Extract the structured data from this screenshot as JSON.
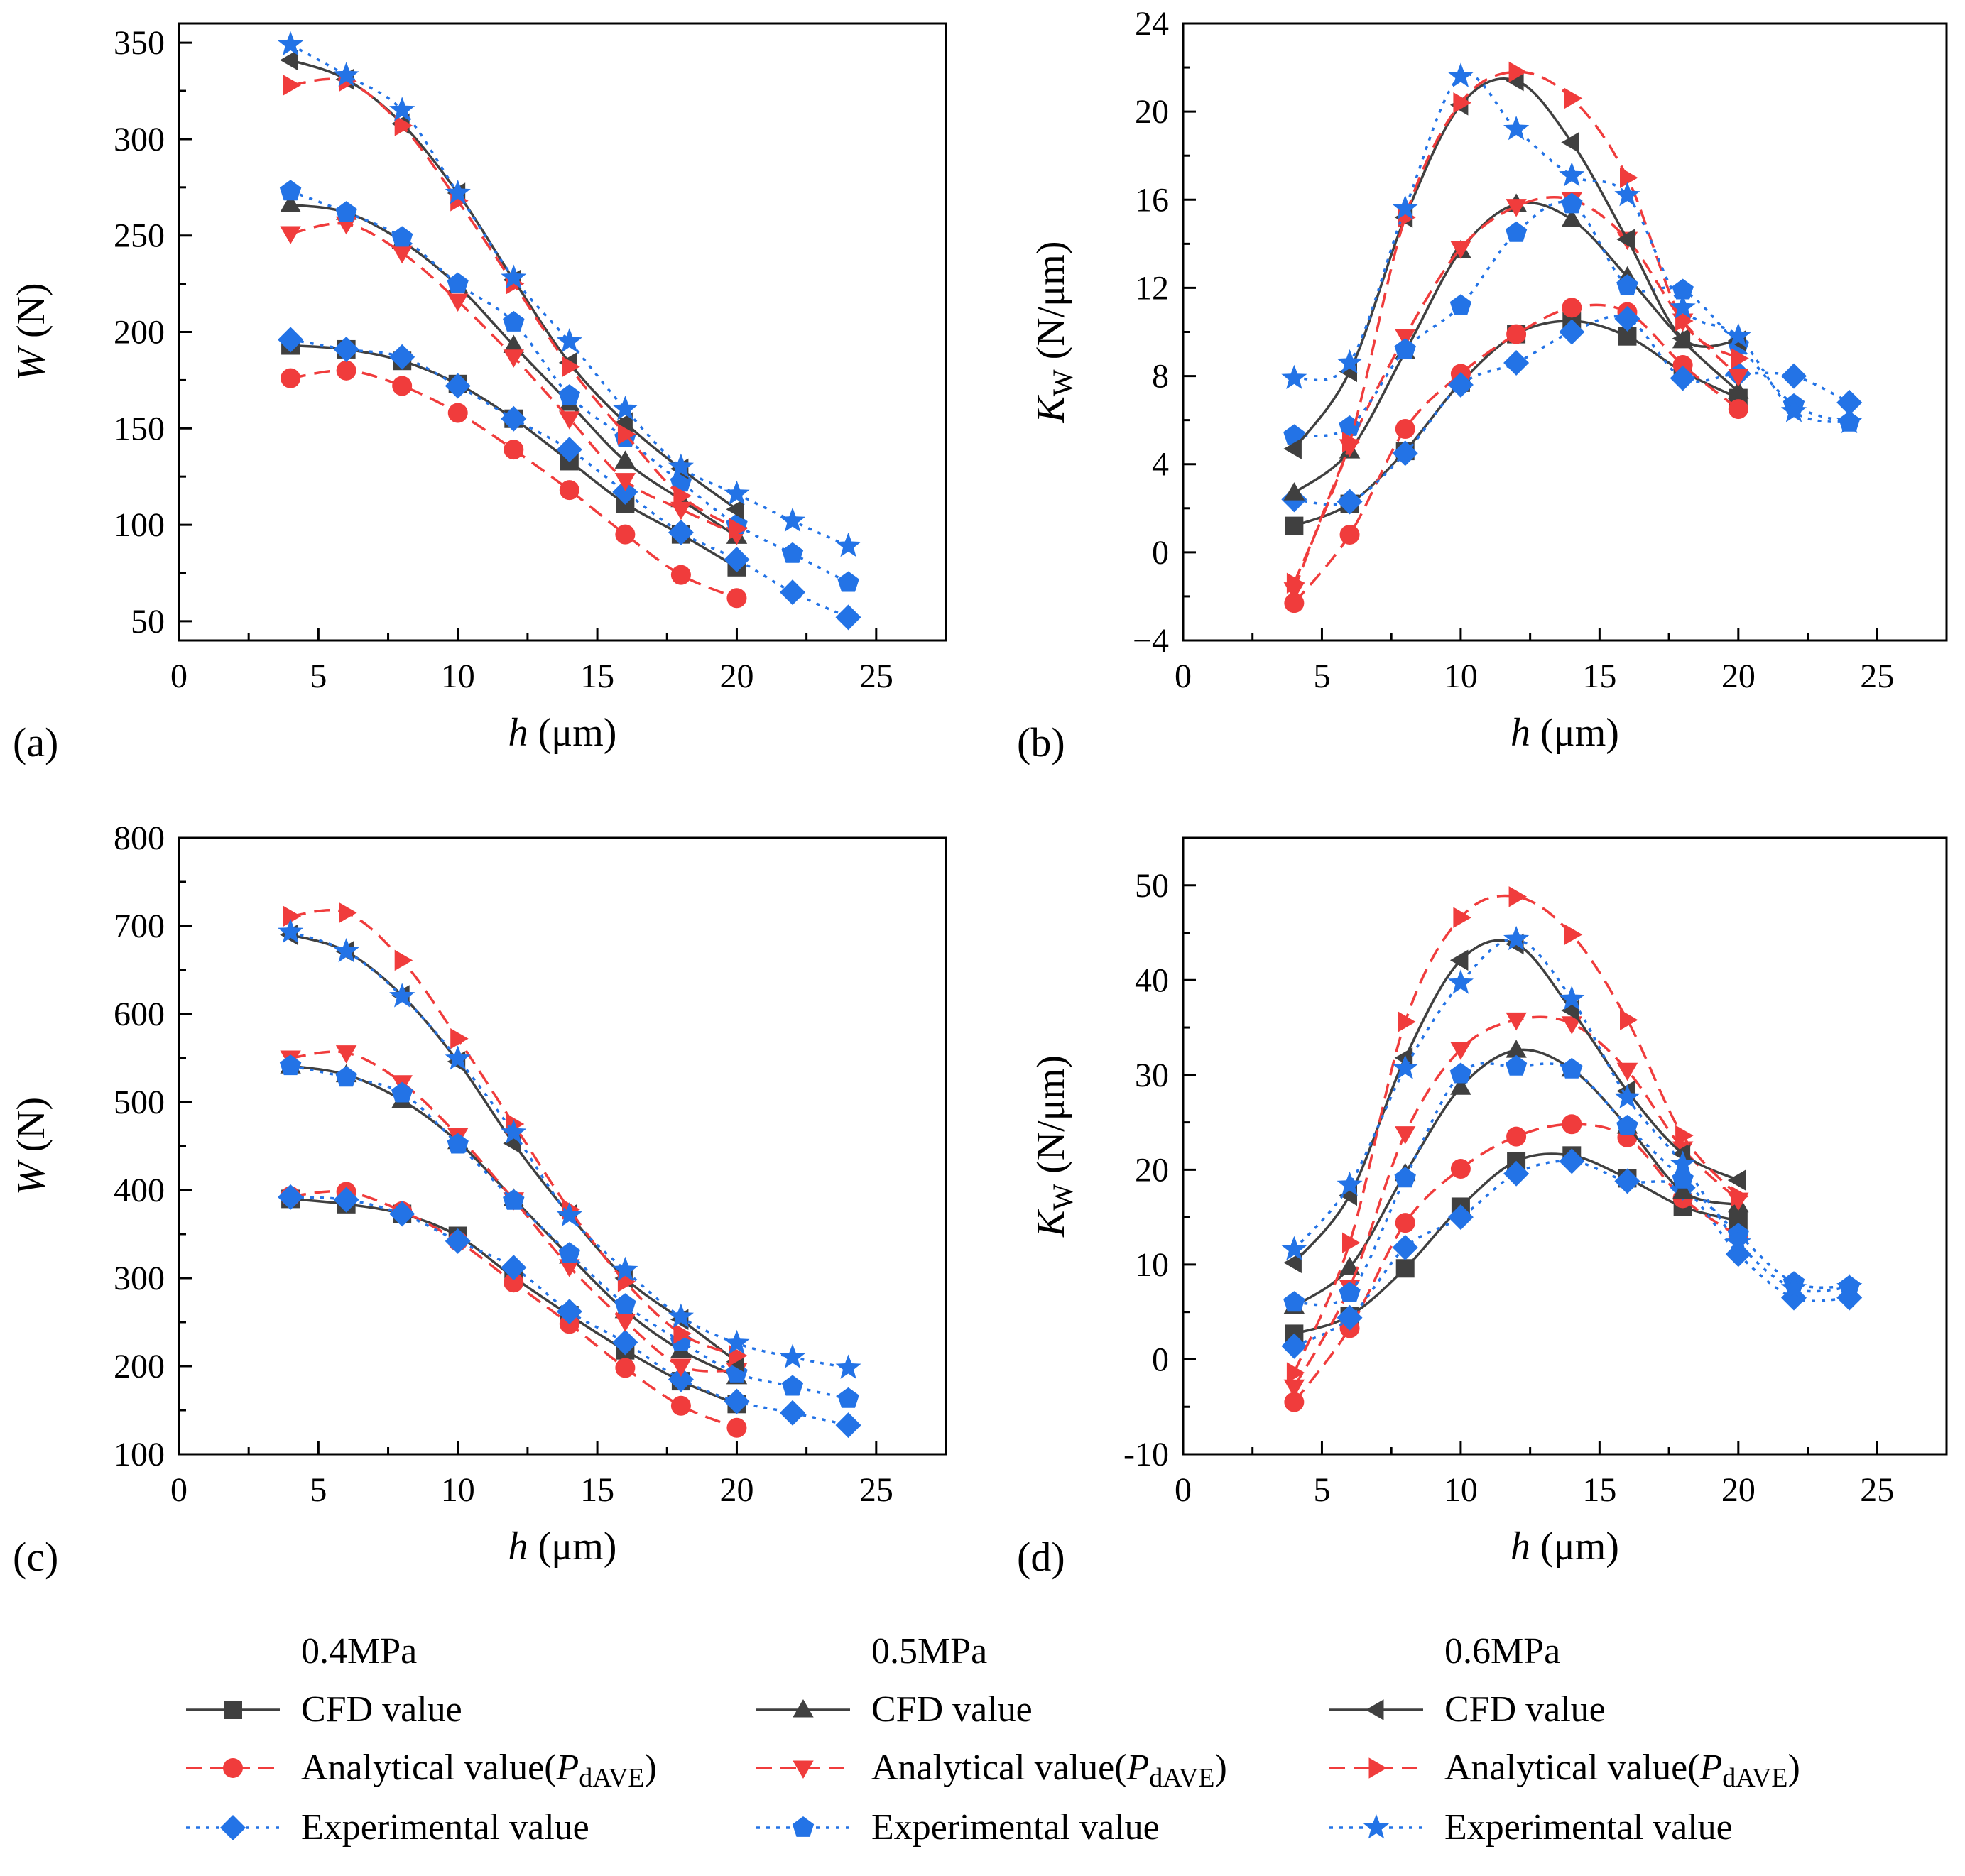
{
  "chart_data": [
    {
      "panel": "(a)",
      "type": "line",
      "xlabel_italic": "h",
      "xlabel_unit": " (μm)",
      "ylabel_italic": "W",
      "ylabel_unit": " (N)",
      "xlim": [
        0,
        27.5
      ],
      "ylim": [
        40,
        360
      ],
      "xticks": [
        0,
        5,
        10,
        15,
        20,
        25
      ],
      "yticks": [
        50,
        100,
        150,
        200,
        250,
        300,
        350
      ],
      "series": [
        {
          "key": "cfd04",
          "x": [
            4,
            6,
            8,
            10,
            12,
            14,
            16,
            18,
            20
          ],
          "y": [
            193,
            191,
            185,
            173,
            155,
            133,
            111,
            95,
            78
          ]
        },
        {
          "key": "ana04",
          "x": [
            4,
            6,
            8,
            10,
            12,
            14,
            16,
            18,
            20
          ],
          "y": [
            176,
            180,
            172,
            158,
            139,
            118,
            95,
            74,
            62
          ]
        },
        {
          "key": "exp04",
          "x": [
            4,
            6,
            8,
            10,
            12,
            14,
            16,
            18,
            20,
            22,
            24
          ],
          "y": [
            196,
            191,
            187,
            172,
            155,
            139,
            117,
            96,
            82,
            65,
            52
          ]
        },
        {
          "key": "cfd05",
          "x": [
            4,
            6,
            8,
            10,
            12,
            14,
            16,
            18,
            20
          ],
          "y": [
            266,
            262,
            247,
            224,
            193,
            163,
            133,
            113,
            94
          ]
        },
        {
          "key": "ana05",
          "x": [
            4,
            6,
            8,
            10,
            12,
            14,
            16,
            18,
            20
          ],
          "y": [
            251,
            256,
            241,
            216,
            187,
            155,
            123,
            108,
            95
          ]
        },
        {
          "key": "exp05",
          "x": [
            4,
            6,
            8,
            10,
            12,
            14,
            16,
            18,
            20,
            22,
            24
          ],
          "y": [
            273,
            262,
            249,
            225,
            205,
            167,
            145,
            122,
            100,
            85,
            70
          ]
        },
        {
          "key": "cfd06",
          "x": [
            4,
            6,
            8,
            10,
            12,
            14,
            16,
            18,
            20
          ],
          "y": [
            341,
            331,
            308,
            272,
            227,
            184,
            153,
            129,
            108
          ]
        },
        {
          "key": "ana06",
          "x": [
            4,
            6,
            8,
            10,
            12,
            14,
            16,
            18,
            20
          ],
          "y": [
            328,
            330,
            307,
            268,
            225,
            182,
            147,
            115,
            98
          ]
        },
        {
          "key": "exp06",
          "x": [
            4,
            6,
            8,
            10,
            12,
            14,
            16,
            18,
            20,
            22,
            24
          ],
          "y": [
            349,
            333,
            315,
            272,
            228,
            195,
            160,
            130,
            116,
            102,
            89
          ]
        }
      ]
    },
    {
      "panel": "(b)",
      "type": "line",
      "xlabel_italic": "h",
      "xlabel_unit": " (μm)",
      "ylabel_italic": "K",
      "ylabel_sub": "W",
      "ylabel_unit": " (N/μm)",
      "xlim": [
        0,
        27.5
      ],
      "ylim": [
        -4,
        24
      ],
      "xticks": [
        0,
        5,
        10,
        15,
        20,
        25
      ],
      "yticks": [
        -4,
        0,
        4,
        8,
        12,
        16,
        20,
        24
      ],
      "ytick_labels": [
        "−4",
        "0",
        "4",
        "8",
        "12",
        "16",
        "20",
        "24"
      ],
      "series": [
        {
          "key": "cfd04",
          "x": [
            4,
            6,
            8,
            10,
            12,
            14,
            16,
            18,
            20
          ],
          "y": [
            1.2,
            2.2,
            4.6,
            7.7,
            9.9,
            10.5,
            9.8,
            8.2,
            7.0
          ]
        },
        {
          "key": "ana04",
          "x": [
            4,
            6,
            8,
            10,
            12,
            14,
            16,
            18,
            20
          ],
          "y": [
            -2.3,
            0.8,
            5.6,
            8.1,
            9.9,
            11.1,
            10.9,
            8.5,
            6.5
          ]
        },
        {
          "key": "exp04",
          "x": [
            4,
            6,
            8,
            10,
            12,
            14,
            16,
            18,
            20,
            22,
            24
          ],
          "y": [
            2.4,
            2.3,
            4.5,
            7.6,
            8.6,
            10.0,
            10.6,
            7.9,
            8.1,
            8.0,
            6.8
          ]
        },
        {
          "key": "cfd05",
          "x": [
            4,
            6,
            8,
            10,
            12,
            14,
            16,
            18,
            20
          ],
          "y": [
            2.7,
            4.6,
            9.1,
            13.7,
            15.8,
            15.1,
            12.5,
            9.6,
            7.3
          ]
        },
        {
          "key": "ana05",
          "x": [
            4,
            6,
            8,
            10,
            12,
            14,
            16,
            18,
            20
          ],
          "y": [
            -1.7,
            4.8,
            9.8,
            13.8,
            15.7,
            16.0,
            14.2,
            10.5,
            8.0
          ]
        },
        {
          "key": "exp05",
          "x": [
            4,
            6,
            8,
            10,
            12,
            14,
            16,
            18,
            20,
            22,
            24
          ],
          "y": [
            5.3,
            5.7,
            9.2,
            11.2,
            14.5,
            15.8,
            12.1,
            11.9,
            9.4,
            6.7,
            5.9
          ]
        },
        {
          "key": "cfd06",
          "x": [
            4,
            6,
            8,
            10,
            12,
            14,
            16,
            18,
            20
          ],
          "y": [
            4.7,
            8.2,
            15.2,
            20.3,
            21.4,
            18.6,
            14.2,
            9.7,
            9.6
          ]
        },
        {
          "key": "ana06",
          "x": [
            4,
            6,
            8,
            10,
            12,
            14,
            16,
            18,
            20
          ],
          "y": [
            -1.4,
            5.0,
            15.2,
            20.4,
            21.8,
            20.6,
            17.0,
            10.5,
            8.8
          ]
        },
        {
          "key": "exp06",
          "x": [
            4,
            6,
            8,
            10,
            12,
            14,
            16,
            18,
            20,
            22,
            24
          ],
          "y": [
            7.9,
            8.6,
            15.6,
            21.6,
            19.2,
            17.1,
            16.2,
            11.1,
            9.8,
            6.4,
            5.9
          ]
        }
      ]
    },
    {
      "panel": "(c)",
      "type": "line",
      "xlabel_italic": "h",
      "xlabel_unit": " (μm)",
      "ylabel_italic": "W",
      "ylabel_unit": " (N)",
      "xlim": [
        0,
        27.5
      ],
      "ylim": [
        100,
        800
      ],
      "xticks": [
        0,
        5,
        10,
        15,
        20,
        25
      ],
      "yticks": [
        100,
        200,
        300,
        400,
        500,
        600,
        700,
        800
      ],
      "series": [
        {
          "key": "cfd04",
          "x": [
            4,
            6,
            8,
            10,
            12,
            14,
            16,
            18,
            20
          ],
          "y": [
            390,
            384,
            373,
            348,
            301,
            258,
            218,
            183,
            157
          ]
        },
        {
          "key": "ana04",
          "x": [
            4,
            6,
            8,
            10,
            12,
            14,
            16,
            18,
            20
          ],
          "y": [
            393,
            398,
            376,
            342,
            295,
            248,
            198,
            155,
            130
          ]
        },
        {
          "key": "exp04",
          "x": [
            4,
            6,
            8,
            10,
            12,
            14,
            16,
            18,
            20,
            22,
            24
          ],
          "y": [
            392,
            389,
            373,
            342,
            312,
            262,
            227,
            185,
            160,
            147,
            133
          ]
        },
        {
          "key": "cfd05",
          "x": [
            4,
            6,
            8,
            10,
            12,
            14,
            16,
            18,
            20
          ],
          "y": [
            541,
            531,
            502,
            455,
            390,
            325,
            263,
            218,
            188
          ]
        },
        {
          "key": "ana05",
          "x": [
            4,
            6,
            8,
            10,
            12,
            14,
            16,
            18,
            20
          ],
          "y": [
            550,
            556,
            522,
            462,
            389,
            313,
            251,
            200,
            195
          ]
        },
        {
          "key": "exp05",
          "x": [
            4,
            6,
            8,
            10,
            12,
            14,
            16,
            18,
            20,
            22,
            24
          ],
          "y": [
            541,
            528,
            510,
            452,
            388,
            328,
            270,
            228,
            192,
            177,
            163
          ]
        },
        {
          "key": "cfd06",
          "x": [
            4,
            6,
            8,
            10,
            12,
            14,
            16,
            18,
            20
          ],
          "y": [
            690,
            671,
            621,
            546,
            453,
            372,
            300,
            253,
            205
          ]
        },
        {
          "key": "ana06",
          "x": [
            4,
            6,
            8,
            10,
            12,
            14,
            16,
            18,
            20
          ],
          "y": [
            711,
            715,
            661,
            572,
            475,
            378,
            296,
            237,
            212
          ]
        },
        {
          "key": "exp06",
          "x": [
            4,
            6,
            8,
            10,
            12,
            14,
            16,
            18,
            20,
            22,
            24
          ],
          "y": [
            693,
            671,
            620,
            549,
            465,
            371,
            309,
            256,
            226,
            210,
            198
          ]
        }
      ]
    },
    {
      "panel": "(d)",
      "type": "line",
      "xlabel_italic": "h",
      "xlabel_unit": " (μm)",
      "ylabel_italic": "K",
      "ylabel_sub": "W",
      "ylabel_unit": " (N/μm)",
      "xlim": [
        0,
        27.5
      ],
      "ylim": [
        -10,
        55
      ],
      "xticks": [
        0,
        5,
        10,
        15,
        20,
        25
      ],
      "yticks": [
        -10,
        0,
        10,
        20,
        30,
        40,
        50
      ],
      "series": [
        {
          "key": "cfd04",
          "x": [
            4,
            6,
            8,
            10,
            12,
            14,
            16,
            18,
            20
          ],
          "y": [
            2.7,
            4.6,
            9.6,
            16.1,
            20.9,
            21.5,
            19.1,
            16.1,
            14.6
          ]
        },
        {
          "key": "ana04",
          "x": [
            4,
            6,
            8,
            10,
            12,
            14,
            16,
            18,
            20
          ],
          "y": [
            -4.5,
            3.3,
            14.4,
            20.1,
            23.5,
            24.8,
            23.4,
            17.0,
            13.0
          ]
        },
        {
          "key": "exp04",
          "x": [
            4,
            6,
            8,
            10,
            12,
            14,
            16,
            18,
            20,
            22,
            24
          ],
          "y": [
            1.4,
            4.4,
            11.8,
            15.0,
            19.6,
            20.9,
            18.8,
            18.1,
            11.1,
            6.5,
            6.5
          ]
        },
        {
          "key": "cfd05",
          "x": [
            4,
            6,
            8,
            10,
            12,
            14,
            16,
            18,
            20
          ],
          "y": [
            5.6,
            9.7,
            19.6,
            28.7,
            32.6,
            30.6,
            24.6,
            17.7,
            16.3
          ]
        },
        {
          "key": "ana05",
          "x": [
            4,
            6,
            8,
            10,
            12,
            14,
            16,
            18,
            20
          ],
          "y": [
            -2.9,
            7.6,
            23.8,
            32.7,
            35.8,
            35.4,
            30.5,
            22.2,
            16.8
          ]
        },
        {
          "key": "exp05",
          "x": [
            4,
            6,
            8,
            10,
            12,
            14,
            16,
            18,
            20,
            22,
            24
          ],
          "y": [
            6.0,
            7.0,
            19.1,
            30.1,
            30.9,
            30.6,
            24.6,
            19.0,
            13.2,
            8.1,
            7.7
          ]
        },
        {
          "key": "cfd06",
          "x": [
            4,
            6,
            8,
            10,
            12,
            14,
            16,
            18,
            20
          ],
          "y": [
            10.2,
            17.3,
            31.8,
            42.1,
            43.8,
            36.8,
            28.3,
            21.7,
            18.9
          ]
        },
        {
          "key": "ana06",
          "x": [
            4,
            6,
            8,
            10,
            12,
            14,
            16,
            18,
            20
          ],
          "y": [
            -1.4,
            12.3,
            35.6,
            46.6,
            48.8,
            44.8,
            35.8,
            23.6,
            17.2
          ]
        },
        {
          "key": "exp06",
          "x": [
            4,
            6,
            8,
            10,
            12,
            14,
            16,
            18,
            20,
            22,
            24
          ],
          "y": [
            11.6,
            18.4,
            30.7,
            39.7,
            44.3,
            38.0,
            27.6,
            20.6,
            12.3,
            7.5,
            7.6
          ]
        }
      ]
    }
  ],
  "styles": {
    "cfd": {
      "color": "#404040",
      "dash": "solid"
    },
    "ana": {
      "color": "#f03c3c",
      "dash": "dashed"
    },
    "exp": {
      "color": "#2373e6",
      "dash": "dotted"
    },
    "markers": {
      "cfd04": "square",
      "cfd05": "triangle-up",
      "cfd06": "triangle-left",
      "ana04": "circle",
      "ana05": "triangle-down",
      "ana06": "triangle-right",
      "exp04": "diamond",
      "exp05": "pentagon",
      "exp06": "star"
    }
  },
  "legend": {
    "groups": [
      {
        "title": "0.4MPa",
        "cfd": "cfd04",
        "ana": "ana04",
        "exp": "exp04"
      },
      {
        "title": "0.5MPa",
        "cfd": "cfd05",
        "ana": "ana05",
        "exp": "exp05"
      },
      {
        "title": "0.6MPa",
        "cfd": "cfd06",
        "ana": "ana06",
        "exp": "exp06"
      }
    ],
    "cfd_label": "CFD value",
    "ana_label_prefix": "Analytical value(",
    "ana_label_var": "P",
    "ana_label_sub": "dAVE",
    "ana_label_suffix": ")",
    "exp_label": "Experimental value"
  }
}
